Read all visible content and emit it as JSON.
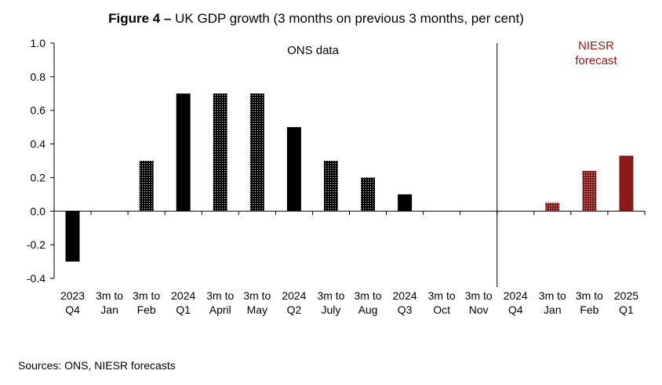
{
  "title": {
    "prefix": "Figure 4 –",
    "text": "UK GDP growth (3 months on previous 3 months, per cent)"
  },
  "source": "Sources: ONS, NIESR forecasts",
  "colors": {
    "ons": "#000000",
    "niesr": "#8b1a1a",
    "niesr_text": "#8b1a1a",
    "axis": "#000000",
    "divider": "#000000"
  },
  "chart_data": {
    "type": "bar",
    "title": "UK GDP growth (3 months on previous 3 months, per cent)",
    "xlabel": "",
    "ylabel": "",
    "ylim": [
      -0.4,
      1.0
    ],
    "yticks": [
      "1.0",
      "0.8",
      "0.6",
      "0.4",
      "0.2",
      "0.0",
      "-0.2",
      "-0.4"
    ],
    "ytick_values": [
      1.0,
      0.8,
      0.6,
      0.4,
      0.2,
      0.0,
      -0.2,
      -0.4
    ],
    "categories": [
      [
        "2023",
        "Q4"
      ],
      [
        "3m to",
        "Jan"
      ],
      [
        "3m to",
        "Feb"
      ],
      [
        "2024",
        "Q1"
      ],
      [
        "3m to",
        "April"
      ],
      [
        "3m to",
        "May"
      ],
      [
        "2024",
        "Q2"
      ],
      [
        "3m to",
        "July"
      ],
      [
        "3m to",
        "Aug"
      ],
      [
        "2024",
        "Q3"
      ],
      [
        "3m to",
        "Oct"
      ],
      [
        "3m to",
        "Nov"
      ],
      [
        "2024",
        "Q4"
      ],
      [
        "3m to",
        "Jan"
      ],
      [
        "3m to",
        "Feb"
      ],
      [
        "2025",
        "Q1"
      ]
    ],
    "values": [
      -0.3,
      0.0,
      0.3,
      0.7,
      0.7,
      0.7,
      0.5,
      0.3,
      0.2,
      0.1,
      0.0,
      0.0,
      0.0,
      0.05,
      0.24,
      0.33
    ],
    "styles": [
      "solid",
      "dotted",
      "dotted",
      "solid",
      "dotted",
      "dotted",
      "solid",
      "dotted",
      "dotted",
      "solid",
      "dotted",
      "dotted",
      "solid",
      "dotted",
      "dotted",
      "solid"
    ],
    "groups": [
      "ons",
      "ons",
      "ons",
      "ons",
      "ons",
      "ons",
      "ons",
      "ons",
      "ons",
      "ons",
      "ons",
      "ons",
      "niesr",
      "niesr",
      "niesr",
      "niesr"
    ],
    "divider_after_index": 11,
    "annotations": {
      "ons": "ONS data",
      "niesr_line1": "NIESR",
      "niesr_line2": "forecast"
    },
    "grid": false,
    "legend": "none"
  }
}
